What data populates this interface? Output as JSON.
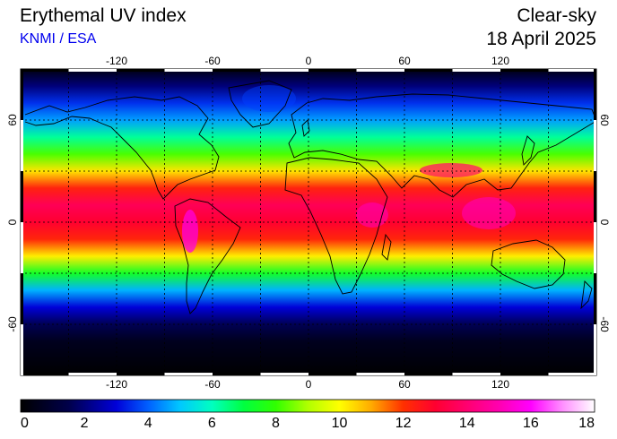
{
  "header": {
    "title": "Erythemal UV index",
    "source": "KNMI / ESA",
    "product": "Clear-sky",
    "date": "18 April 2025"
  },
  "map": {
    "projection": "equirectangular",
    "lon_range": [
      -180,
      180
    ],
    "lat_range": [
      -90,
      90
    ],
    "lon_ticks": [
      {
        "value": -120,
        "label": "-120"
      },
      {
        "value": -60,
        "label": "-60"
      },
      {
        "value": 0,
        "label": "0"
      },
      {
        "value": 60,
        "label": "60"
      },
      {
        "value": 120,
        "label": "120"
      }
    ],
    "lat_ticks": [
      {
        "value": 60,
        "label": "60"
      },
      {
        "value": 0,
        "label": "0"
      },
      {
        "value": -60,
        "label": "-60"
      }
    ],
    "grid_lon": [
      -150,
      -120,
      -90,
      -60,
      -30,
      0,
      30,
      60,
      90,
      120,
      150
    ],
    "grid_lat": [
      60,
      30,
      0,
      -30,
      -60
    ],
    "grid": true
  },
  "colorbar": {
    "min": 0,
    "max": 18,
    "ticks": [
      {
        "value": 0,
        "label": "0"
      },
      {
        "value": 2,
        "label": "2"
      },
      {
        "value": 4,
        "label": "4"
      },
      {
        "value": 6,
        "label": "6"
      },
      {
        "value": 8,
        "label": "8"
      },
      {
        "value": 10,
        "label": "10"
      },
      {
        "value": 12,
        "label": "12"
      },
      {
        "value": 14,
        "label": "14"
      },
      {
        "value": 16,
        "label": "16"
      },
      {
        "value": 18,
        "label": "18"
      }
    ],
    "stops": [
      {
        "value": 0,
        "color": "#000000"
      },
      {
        "value": 1.5,
        "color": "#00004a"
      },
      {
        "value": 3,
        "color": "#0000d8"
      },
      {
        "value": 4,
        "color": "#0060ff"
      },
      {
        "value": 5,
        "color": "#00c8ff"
      },
      {
        "value": 6,
        "color": "#00ffc0"
      },
      {
        "value": 7,
        "color": "#00ff40"
      },
      {
        "value": 8,
        "color": "#30ff00"
      },
      {
        "value": 9,
        "color": "#b0ff00"
      },
      {
        "value": 10,
        "color": "#ffff00"
      },
      {
        "value": 11,
        "color": "#ffaa00"
      },
      {
        "value": 12,
        "color": "#ff3000"
      },
      {
        "value": 13,
        "color": "#ff0030"
      },
      {
        "value": 14,
        "color": "#ff0070"
      },
      {
        "value": 15,
        "color": "#ff00b0"
      },
      {
        "value": 16,
        "color": "#ff00ff"
      },
      {
        "value": 17,
        "color": "#ff90ff"
      },
      {
        "value": 18,
        "color": "#ffffff"
      }
    ]
  },
  "uv_profile": [
    {
      "lat": 90,
      "uv": 0.3
    },
    {
      "lat": 80,
      "uv": 2.0
    },
    {
      "lat": 70,
      "uv": 3.5
    },
    {
      "lat": 60,
      "uv": 4.6
    },
    {
      "lat": 50,
      "uv": 6.3
    },
    {
      "lat": 40,
      "uv": 8.2
    },
    {
      "lat": 30,
      "uv": 10.3
    },
    {
      "lat": 20,
      "uv": 12.3
    },
    {
      "lat": 10,
      "uv": 13.6
    },
    {
      "lat": 0,
      "uv": 13.0
    },
    {
      "lat": -10,
      "uv": 12.2
    },
    {
      "lat": -20,
      "uv": 10.2
    },
    {
      "lat": -30,
      "uv": 7.4
    },
    {
      "lat": -40,
      "uv": 4.8
    },
    {
      "lat": -50,
      "uv": 3.0
    },
    {
      "lat": -60,
      "uv": 1.6
    },
    {
      "lat": -70,
      "uv": 0.6
    },
    {
      "lat": -90,
      "uv": 0.0
    }
  ]
}
